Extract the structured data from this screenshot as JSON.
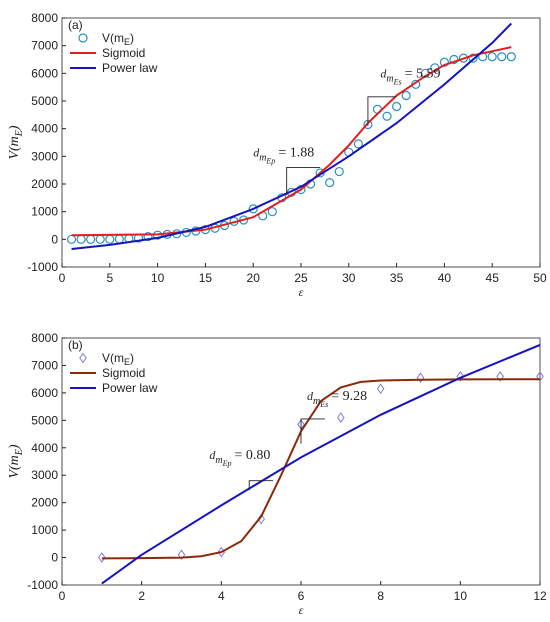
{
  "chart_data": [
    {
      "type": "scatter",
      "label": "(a)",
      "xlabel": "ε",
      "ylabel_parts": [
        "V(m",
        "E",
        ")"
      ],
      "xlim": [
        0,
        50
      ],
      "ylim": [
        -1000,
        8000
      ],
      "xticks": [
        0,
        5,
        10,
        15,
        20,
        25,
        30,
        35,
        40,
        45,
        50
      ],
      "yticks": [
        -1000,
        0,
        1000,
        2000,
        3000,
        4000,
        5000,
        6000,
        7000,
        8000
      ],
      "legend": "upper left",
      "series": [
        {
          "name_parts": [
            "V(m",
            "E",
            ")"
          ],
          "kind": "scatter",
          "marker": "circle",
          "color": "#2a8fc0",
          "x": [
            1,
            2,
            3,
            4,
            5,
            6,
            7,
            8,
            9,
            10,
            11,
            12,
            13,
            14,
            15,
            16,
            17,
            18,
            19,
            20,
            21,
            22,
            23,
            24,
            25,
            26,
            27,
            28,
            29,
            30,
            31,
            32,
            33,
            34,
            35,
            36,
            37,
            38,
            39,
            40,
            41,
            42,
            43,
            44,
            45,
            46,
            47
          ],
          "values": [
            0,
            0,
            0,
            0,
            0,
            10,
            30,
            50,
            100,
            150,
            180,
            200,
            250,
            300,
            350,
            400,
            500,
            650,
            700,
            1100,
            850,
            1000,
            1500,
            1700,
            1800,
            2000,
            2400,
            2050,
            2450,
            3150,
            3450,
            4150,
            4700,
            4450,
            4800,
            5200,
            5600,
            6000,
            6200,
            6400,
            6500,
            6550,
            6550,
            6600,
            6600,
            6600,
            6600
          ]
        },
        {
          "name": "Sigmoid",
          "kind": "line",
          "color": "#e02020",
          "x": [
            1,
            10,
            15,
            20,
            25,
            28,
            30,
            32,
            35,
            38,
            40,
            43,
            47
          ],
          "values": [
            150,
            180,
            350,
            800,
            1800,
            2700,
            3400,
            4200,
            5200,
            5900,
            6300,
            6650,
            6950
          ]
        },
        {
          "name": "Power law",
          "kind": "line",
          "color": "#1414c0",
          "x": [
            1,
            5,
            10,
            15,
            20,
            25,
            30,
            35,
            40,
            45,
            47
          ],
          "values": [
            -350,
            -200,
            50,
            450,
            1100,
            1900,
            3000,
            4200,
            5600,
            7100,
            7800
          ]
        }
      ],
      "annotations": [
        {
          "parts": [
            "d",
            "m",
            "Es",
            "= 5.59"
          ]
        },
        {
          "parts": [
            "d",
            "m",
            "Ep",
            "= 1.88"
          ]
        }
      ]
    },
    {
      "type": "scatter",
      "label": "(b)",
      "xlabel": "ε",
      "ylabel_parts": [
        "V(m",
        "E",
        ")"
      ],
      "xlim": [
        0,
        12
      ],
      "ylim": [
        -1000,
        8000
      ],
      "xticks": [
        0,
        2,
        4,
        6,
        8,
        10,
        12
      ],
      "yticks": [
        -1000,
        0,
        1000,
        2000,
        3000,
        4000,
        5000,
        6000,
        7000,
        8000
      ],
      "legend": "upper left",
      "series": [
        {
          "name_parts": [
            "V(m",
            "E",
            ")"
          ],
          "kind": "scatter",
          "marker": "diamond",
          "color": "#7f7fd4",
          "x": [
            1,
            3,
            4,
            5,
            6,
            7,
            8,
            9,
            10,
            11,
            12
          ],
          "values": [
            0,
            100,
            200,
            1400,
            4850,
            5100,
            6150,
            6550,
            6600,
            6600,
            6600
          ]
        },
        {
          "name": "Sigmoid",
          "kind": "line",
          "color": "#8b2a0a",
          "x": [
            1,
            2,
            3,
            3.5,
            4,
            4.5,
            5,
            5.5,
            6,
            6.5,
            7,
            7.5,
            8,
            9,
            10,
            12
          ],
          "values": [
            -30,
            -20,
            0,
            50,
            200,
            600,
            1500,
            3000,
            4600,
            5700,
            6200,
            6400,
            6450,
            6480,
            6490,
            6500
          ]
        },
        {
          "name": "Power law",
          "kind": "line",
          "color": "#1414c0",
          "x": [
            1,
            2,
            4,
            6,
            8,
            10,
            12
          ],
          "values": [
            -950,
            100,
            1900,
            3650,
            5200,
            6550,
            7750
          ]
        }
      ],
      "annotations": [
        {
          "parts": [
            "d",
            "m",
            "Es",
            "= 9.28"
          ]
        },
        {
          "parts": [
            "d",
            "m",
            "Ep",
            "= 0.80"
          ]
        }
      ]
    }
  ]
}
